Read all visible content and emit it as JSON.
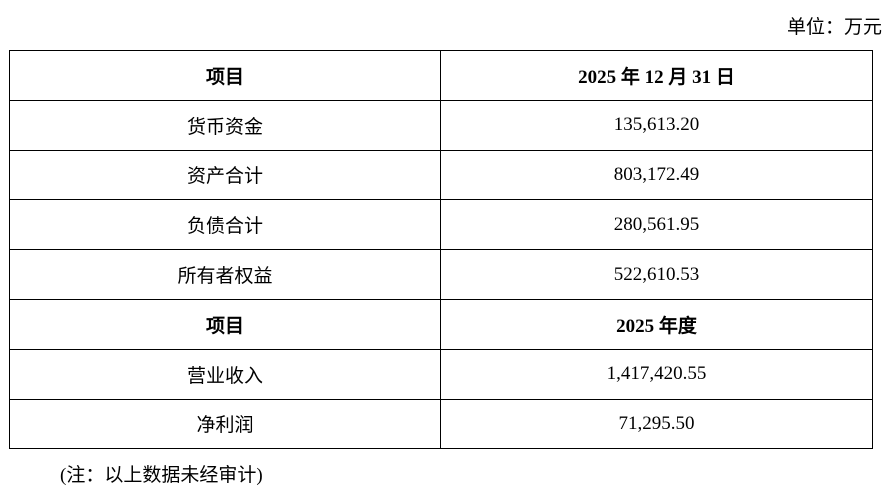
{
  "unit": "单位：万元",
  "table": {
    "rows": [
      [
        "项目",
        "2025 年 12 月 31 日"
      ],
      [
        "货币资金",
        "135,613.20"
      ],
      [
        "资产合计",
        "803,172.49"
      ],
      [
        "负债合计",
        "280,561.95"
      ],
      [
        "所有者权益",
        "522,610.53"
      ],
      [
        "项目",
        "2025 年度"
      ],
      [
        "营业收入",
        "1,417,420.55"
      ],
      [
        "净利润",
        "71,295.50"
      ]
    ]
  },
  "note": "(注：以上数据未经审计)"
}
